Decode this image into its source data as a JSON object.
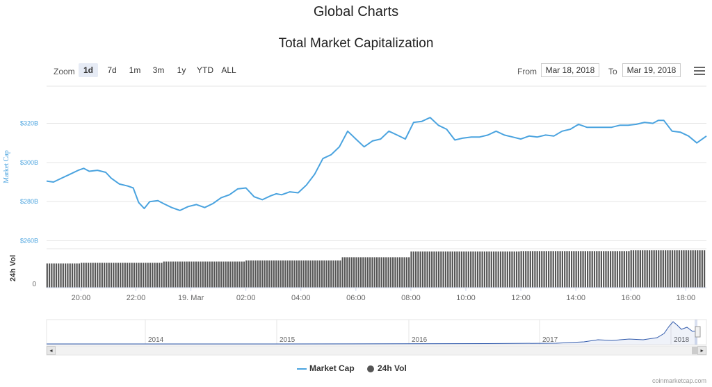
{
  "page_title": "Global Charts",
  "toolbar": {
    "zoom_label": "Zoom",
    "zoom_buttons": [
      "1d",
      "7d",
      "1m",
      "3m",
      "1y",
      "YTD",
      "ALL"
    ],
    "active_zoom": "1d",
    "from_label": "From",
    "from_value": "Mar 18, 2018",
    "to_label": "To",
    "to_value": "Mar 19, 2018",
    "menu_icon": "hamburger-icon"
  },
  "legend": {
    "market_cap_label": "Market Cap",
    "vol_label": "24h Vol"
  },
  "credits": "coinmarketcap.com",
  "colors": {
    "market_cap": "#4aa3df",
    "volume": "#555555",
    "navigator": "#335cad"
  },
  "chart_data": {
    "type": "line",
    "title": "Total Market Capitalization",
    "x_tick_labels": [
      "20:00",
      "22:00",
      "19. Mar",
      "02:00",
      "04:00",
      "06:00",
      "08:00",
      "10:00",
      "12:00",
      "14:00",
      "16:00",
      "18:00"
    ],
    "x_hours": [
      20,
      22,
      24,
      26,
      28,
      30,
      32,
      34,
      36,
      38,
      40,
      42
    ],
    "x_range_hours": [
      18.75,
      42.75
    ],
    "ylabel": "Market Cap",
    "y_unit": "billions USD",
    "y_tick_labels": [
      "$260B",
      "$280B",
      "$300B",
      "$320B"
    ],
    "y_ticks": [
      260,
      280,
      300,
      320
    ],
    "ylim": [
      257,
      339
    ],
    "grid": true,
    "series": [
      {
        "name": "Market Cap",
        "x_hours": [
          18.75,
          19.0,
          19.3,
          19.6,
          19.9,
          20.1,
          20.3,
          20.6,
          20.9,
          21.1,
          21.4,
          21.7,
          21.9,
          22.1,
          22.3,
          22.5,
          22.8,
          23.0,
          23.3,
          23.6,
          23.9,
          24.2,
          24.5,
          24.8,
          25.1,
          25.4,
          25.7,
          26.0,
          26.3,
          26.6,
          26.9,
          27.1,
          27.3,
          27.6,
          27.9,
          28.2,
          28.5,
          28.8,
          29.1,
          29.4,
          29.7,
          30.0,
          30.3,
          30.6,
          30.9,
          31.2,
          31.5,
          31.8,
          32.1,
          32.4,
          32.7,
          33.0,
          33.3,
          33.6,
          33.9,
          34.2,
          34.5,
          34.8,
          35.1,
          35.4,
          35.7,
          36.0,
          36.3,
          36.6,
          36.9,
          37.2,
          37.5,
          37.8,
          38.1,
          38.4,
          38.7,
          39.0,
          39.3,
          39.6,
          39.9,
          40.2,
          40.5,
          40.8,
          41.0,
          41.2,
          41.5,
          41.8,
          42.1,
          42.4,
          42.75
        ],
        "values": [
          290.5,
          290,
          292,
          294,
          296,
          297,
          295.5,
          296,
          295,
          292,
          289,
          288,
          287,
          279.5,
          276.5,
          280,
          280.5,
          279,
          277,
          275.5,
          277.5,
          278.5,
          277,
          279,
          282,
          283.5,
          286.5,
          287,
          282.5,
          281,
          283,
          284,
          283.5,
          285,
          284.5,
          288.5,
          294,
          302,
          304,
          308,
          316,
          312,
          308,
          311,
          312,
          316,
          314,
          312,
          320.5,
          321,
          323,
          319,
          317,
          311.5,
          312.5,
          313,
          313,
          314,
          316,
          314,
          313,
          312,
          313.5,
          313,
          314,
          313.5,
          316,
          317,
          319.5,
          318,
          318,
          318,
          318,
          319,
          319,
          319.5,
          320.5,
          320,
          321.5,
          321.5,
          316,
          315.5,
          313.5,
          310,
          313.5
        ]
      },
      {
        "name": "24h Vol",
        "axis_label": "24h Vol",
        "y_tick_labels": [
          "0"
        ],
        "description_shown": "bars from 19:00 to 18:40, gradually increasing",
        "x_hours_segments": [
          [
            18.75,
            20.0
          ],
          [
            20.0,
            23.0
          ],
          [
            23.0,
            26.0
          ],
          [
            26.0,
            29.5
          ],
          [
            29.5,
            32.0
          ],
          [
            32.0,
            36.0
          ],
          [
            36.0,
            40.0
          ],
          [
            40.0,
            42.75
          ]
        ],
        "relative_heights": [
          0.62,
          0.64,
          0.67,
          0.7,
          0.78,
          0.93,
          0.94,
          0.96
        ]
      }
    ],
    "navigator": {
      "year_labels": [
        "2014",
        "2015",
        "2016",
        "2017",
        "2018"
      ]
    }
  }
}
